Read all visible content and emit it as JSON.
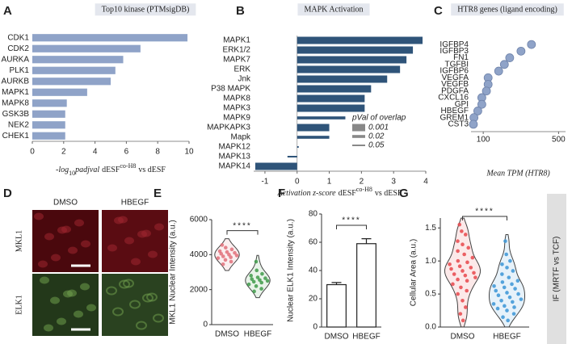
{
  "chart_data": [
    {
      "panel_label": "A",
      "type": "bar",
      "orientation": "horizontal",
      "title": "Top10 kinase (PTMsigDB)",
      "categories": [
        "CDK1",
        "CDK2",
        "AURKA",
        "PLK1",
        "AURKB",
        "MAPK1",
        "MAPK8",
        "GSK3B",
        "NEK2",
        "CHEK1"
      ],
      "values": [
        9.9,
        6.9,
        5.8,
        5.3,
        5.0,
        3.5,
        2.2,
        2.1,
        2.1,
        2.1
      ],
      "color": "#8fa3c8",
      "xlim": [
        0,
        10
      ],
      "xticks": [
        0,
        2,
        4,
        6,
        8,
        10
      ],
      "x_label": [
        "-log",
        "10",
        "padjval",
        "dESF",
        "co-H8",
        "vs dESF"
      ]
    },
    {
      "panel_label": "B",
      "type": "bar",
      "orientation": "horizontal",
      "title": "MAPK Activation",
      "categories": [
        "MAPK1",
        "ERK1/2",
        "MAPK7",
        "ERK",
        "Jnk",
        "P38 MAPK",
        "MAPK8",
        "MAPK3",
        "MAPK9",
        "MAPKAPK3",
        "Mapk",
        "MAPK12",
        "MAPK13",
        "MAPK14"
      ],
      "values": [
        3.9,
        3.6,
        3.4,
        3.2,
        2.8,
        2.3,
        2.1,
        2.1,
        1.5,
        1.0,
        1.0,
        0.05,
        -0.3,
        -1.3
      ],
      "p_values": [
        0.001,
        0.001,
        0.001,
        0.001,
        0.001,
        0.001,
        0.001,
        0.001,
        0.02,
        0.001,
        0.02,
        0.05,
        0.05,
        0.001
      ],
      "color": "#2f5479",
      "xlim": [
        -1.35,
        4
      ],
      "xticks": [
        -1,
        0,
        1,
        2,
        3,
        4
      ],
      "x_label": [
        "Activation z-score",
        "dESF",
        "co-H8",
        "vs dESF"
      ],
      "size_legend": {
        "title": "pVal of overlap",
        "values": [
          0.001,
          0.02,
          0.05
        ]
      }
    },
    {
      "panel_label": "C",
      "type": "dot",
      "title": "HTR8 genes (ligand encoding)",
      "categories": [
        "IGFBP4",
        "IGFBP3",
        "FN1",
        "TGFBI",
        "IGFBP6",
        "VEGFA",
        "VEGFB",
        "PDGFA",
        "CXCL16",
        "GPI",
        "HBEGF",
        "GREM1",
        "CST3"
      ],
      "values": [
        280,
        224,
        176,
        157,
        139,
        111,
        111,
        107,
        97,
        97,
        89,
        82,
        81
      ],
      "color": "#8fa3c8",
      "xlim": [
        77,
        580
      ],
      "xticks": [
        100,
        500
      ],
      "log_scale": true,
      "x_label": "Mean TPM (HTR8)"
    },
    {
      "panel_label": "E",
      "type": "violin",
      "categories": [
        "DMSO",
        "HBEGF"
      ],
      "points": [
        [
          4550,
          4400,
          4300,
          4200,
          4150,
          4100,
          4050,
          4000,
          3950,
          3900,
          3850,
          3800,
          3700,
          3600,
          3450
        ],
        [
          3600,
          3100,
          2900,
          2800,
          2700,
          2650,
          2600,
          2550,
          2500,
          2450,
          2400,
          2300,
          2200,
          2050,
          1900
        ]
      ],
      "colors": [
        "#e0707a",
        "#3f9a4a"
      ],
      "ylim": [
        0,
        6000
      ],
      "yticks": [
        0,
        2000,
        4000,
        6000
      ],
      "y_label": "MKL1 Nuclear Intensity (a.u.)",
      "significance": "****"
    },
    {
      "panel_label": "F",
      "type": "bar",
      "categories": [
        "DMSO",
        "HBEGF"
      ],
      "values": [
        30,
        59
      ],
      "errors": [
        1.5,
        3.5
      ],
      "color": "#ffffff",
      "ylim": [
        0,
        80
      ],
      "yticks": [
        0,
        20,
        40,
        60,
        80
      ],
      "y_label": "Nuclear ELK1 Intensity (a.u.)",
      "significance": "****"
    },
    {
      "panel_label": "G",
      "type": "violin",
      "categories": [
        "DMSO",
        "HBEGF"
      ],
      "points": [
        [
          1.55,
          1.45,
          1.4,
          1.3,
          1.25,
          1.2,
          1.15,
          1.1,
          1.05,
          1.0,
          0.98,
          0.95,
          0.92,
          0.9,
          0.88,
          0.85,
          0.82,
          0.8,
          0.78,
          0.75,
          0.72,
          0.7,
          0.65,
          0.6,
          0.55,
          0.5,
          0.4,
          0.3,
          0.2,
          0.1
        ],
        [
          1.3,
          1.1,
          1.0,
          0.95,
          0.9,
          0.85,
          0.8,
          0.75,
          0.7,
          0.68,
          0.65,
          0.62,
          0.6,
          0.58,
          0.55,
          0.52,
          0.5,
          0.48,
          0.45,
          0.42,
          0.4,
          0.38,
          0.35,
          0.32,
          0.3,
          0.28,
          0.25,
          0.2,
          0.15,
          0.1
        ]
      ],
      "colors": [
        "#e8474b",
        "#3a95d6"
      ],
      "ylim": [
        0,
        1.65
      ],
      "yticks": [
        {
          "value": 0,
          "label": "0.0"
        },
        {
          "value": 0.5,
          "label": "0.5"
        },
        {
          "value": 1,
          "label": "1.0"
        },
        {
          "value": 1.5,
          "label": "1.5"
        }
      ],
      "y_label": "Cellular Area (a.u.)",
      "significance": "****"
    }
  ],
  "image_panel": {
    "panel_label": "D",
    "columns": [
      "DMSO",
      "HBEGF"
    ],
    "rows": [
      {
        "label": "MKL1",
        "color": "#d32f2f"
      },
      {
        "label": "ELK1",
        "color": "#4caf50"
      }
    ]
  },
  "side_label": "IF (MRTF vs TCF)"
}
